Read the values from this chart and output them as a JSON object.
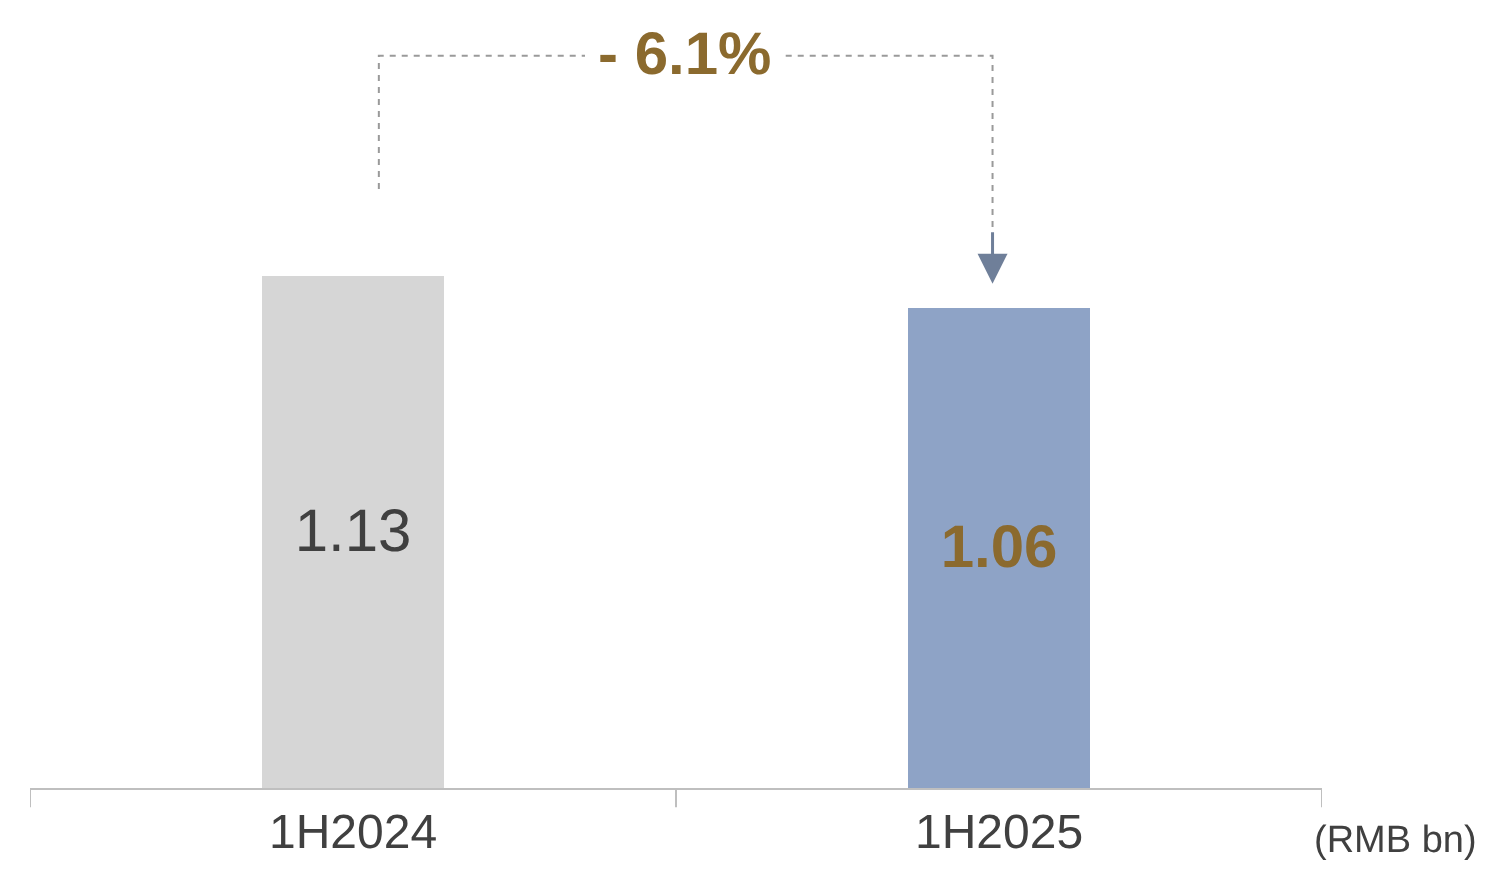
{
  "chart_data": {
    "type": "bar",
    "categories": [
      "1H2024",
      "1H2025"
    ],
    "values": [
      1.13,
      1.06
    ],
    "colors": [
      "#d6d6d6",
      "#8ea3c6"
    ],
    "data_labels": true,
    "annotations": [
      "- 6.1%",
      "(RMB bn)"
    ]
  }
}
